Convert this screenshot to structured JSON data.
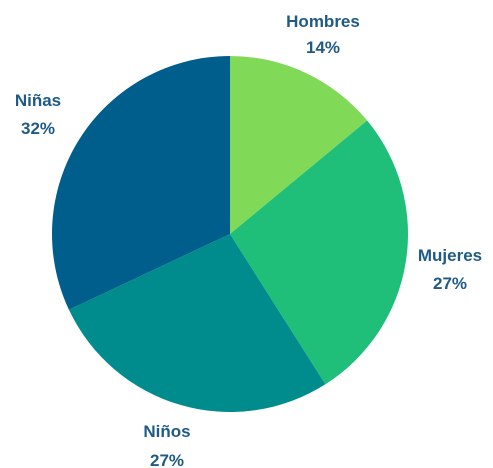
{
  "chart_data": {
    "type": "pie",
    "start_angle_deg": 0,
    "direction": "clockwise",
    "slices": [
      {
        "label": "Hombres",
        "value": 14,
        "value_label": "14%",
        "color": "#80d957"
      },
      {
        "label": "Mujeres",
        "value": 27,
        "value_label": "27%",
        "color": "#1fbf7a"
      },
      {
        "label": "Niños",
        "value": 27,
        "value_label": "27%",
        "color": "#008c8c"
      },
      {
        "label": "Niñas",
        "value": 32,
        "value_label": "32%",
        "color": "#005e8c"
      }
    ],
    "label_color": "#1f5b86"
  }
}
